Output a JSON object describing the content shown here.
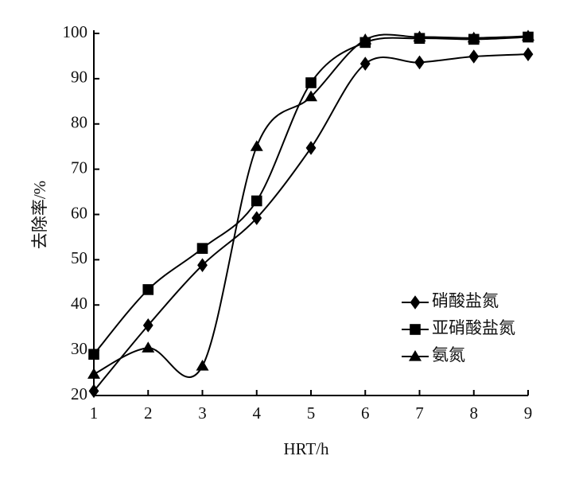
{
  "chart_data": {
    "type": "line",
    "x_label": "HRT/h",
    "y_label": "去除率/%",
    "x": [
      1,
      2,
      3,
      4,
      5,
      6,
      7,
      8,
      9
    ],
    "xlim": [
      1,
      9
    ],
    "xticks": [
      1,
      2,
      3,
      4,
      5,
      6,
      7,
      8,
      9
    ],
    "ylim": [
      20,
      100
    ],
    "yticks": [
      20,
      30,
      40,
      50,
      60,
      70,
      80,
      90,
      100
    ],
    "smooth": true,
    "legend_position": "right",
    "series": [
      {
        "name": "硝酸盐氮",
        "color": "#000000",
        "marker": "diamond",
        "values": [
          21,
          35.5,
          48.8,
          59.2,
          74.7,
          93.3,
          93.6,
          94.9,
          95.4
        ]
      },
      {
        "name": "亚硝酸盐氮",
        "color": "#000000",
        "marker": "square",
        "values": [
          29.1,
          43.4,
          52.5,
          63,
          89.1,
          98,
          98.9,
          98.7,
          99.2
        ]
      },
      {
        "name": "氨氮",
        "color": "#000000",
        "marker": "triangle",
        "values": [
          24.7,
          30.5,
          26.5,
          75,
          86,
          98.6,
          99.2,
          99,
          99.4
        ]
      }
    ]
  }
}
